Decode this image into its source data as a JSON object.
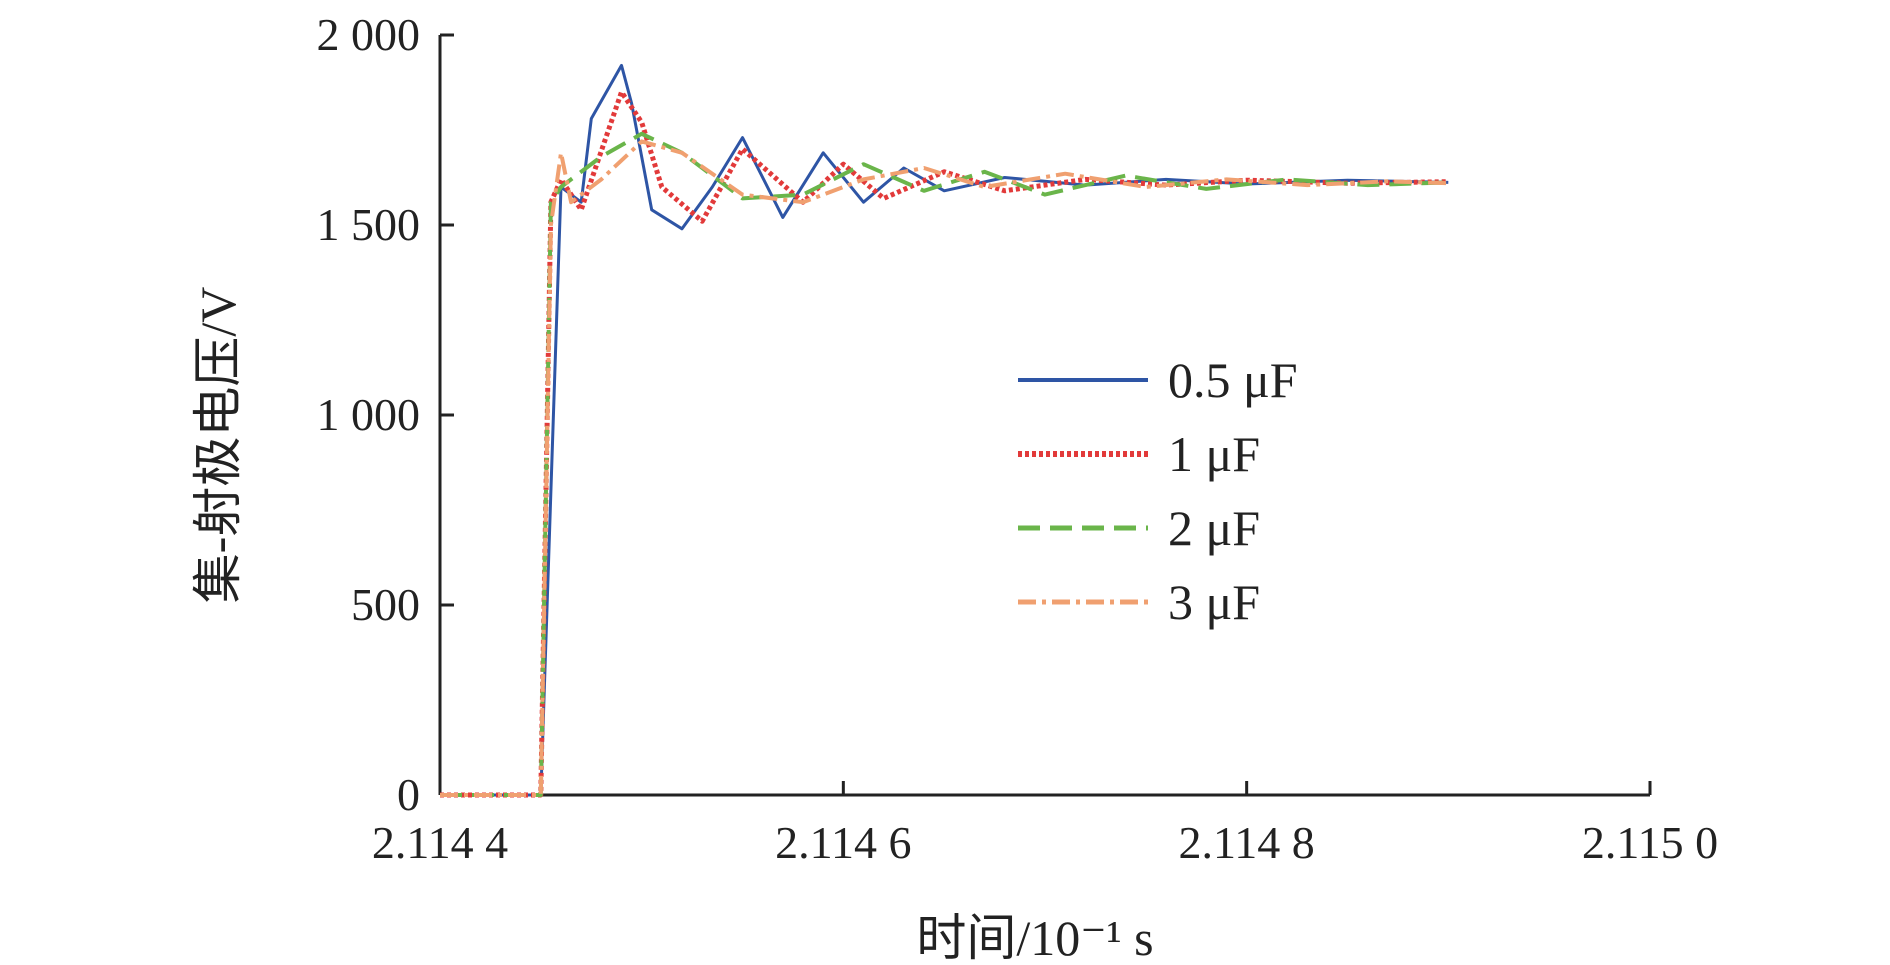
{
  "chart_data": {
    "type": "line",
    "xlabel": "时间/10⁻¹ s",
    "ylabel": "集-射极电压/V",
    "xlim": [
      2.1144,
      2.115
    ],
    "ylim": [
      0,
      2000
    ],
    "x_ticks": [
      {
        "value": 2.1144,
        "label": "2.114 4"
      },
      {
        "value": 2.1146,
        "label": "2.114 6"
      },
      {
        "value": 2.1148,
        "label": "2.114 8"
      },
      {
        "value": 2.115,
        "label": "2.115 0"
      }
    ],
    "y_ticks": [
      {
        "value": 0,
        "label": "0"
      },
      {
        "value": 500,
        "label": "500"
      },
      {
        "value": 1000,
        "label": "1 000"
      },
      {
        "value": 1500,
        "label": "1 500"
      },
      {
        "value": 2000,
        "label": "2 000"
      }
    ],
    "grid": false,
    "legend_position": "center-right",
    "series": [
      {
        "name": "0.5 μF",
        "color": "#2e55a5",
        "dash": "solid",
        "x": [
          2.1144,
          2.11445,
          2.11446,
          2.11447,
          2.114475,
          2.11449,
          2.114495,
          2.114505,
          2.11452,
          2.114535,
          2.11455,
          2.11457,
          2.11459,
          2.11461,
          2.11463,
          2.11465,
          2.11468,
          2.11472,
          2.11476,
          2.1148,
          2.11485,
          2.1149
        ],
        "y": [
          0,
          0,
          1600,
          1560,
          1780,
          1920,
          1820,
          1540,
          1490,
          1600,
          1730,
          1520,
          1690,
          1560,
          1650,
          1590,
          1625,
          1605,
          1620,
          1608,
          1618,
          1612
        ]
      },
      {
        "name": "1 μF",
        "color": "#e23a3a",
        "dash": "dotted",
        "x": [
          2.1144,
          2.11445,
          2.114455,
          2.11446,
          2.11447,
          2.11449,
          2.1145,
          2.11451,
          2.11453,
          2.11455,
          2.11458,
          2.1146,
          2.11462,
          2.11465,
          2.11468,
          2.11472,
          2.11476,
          2.1148,
          2.11485,
          2.1149
        ],
        "y": [
          0,
          0,
          1560,
          1620,
          1540,
          1850,
          1770,
          1600,
          1510,
          1700,
          1560,
          1660,
          1570,
          1640,
          1590,
          1620,
          1605,
          1618,
          1610,
          1614
        ]
      },
      {
        "name": "2 μF",
        "color": "#6ab54a",
        "dash": "dashed",
        "x": [
          2.1144,
          2.11445,
          2.114455,
          2.11446,
          2.11448,
          2.1145,
          2.11452,
          2.11455,
          2.11458,
          2.11461,
          2.11464,
          2.11467,
          2.1147,
          2.11474,
          2.11478,
          2.11482,
          2.11486,
          2.1149
        ],
        "y": [
          0,
          0,
          1560,
          1600,
          1680,
          1740,
          1690,
          1570,
          1580,
          1660,
          1590,
          1640,
          1580,
          1630,
          1595,
          1620,
          1605,
          1612
        ]
      },
      {
        "name": "3 μF",
        "color": "#f0a070",
        "dash": "dashdot",
        "x": [
          2.1144,
          2.11445,
          2.114455,
          2.11446,
          2.114465,
          2.11448,
          2.1145,
          2.11452,
          2.11455,
          2.11458,
          2.11461,
          2.11464,
          2.11467,
          2.11471,
          2.11475,
          2.11479,
          2.11483,
          2.11487,
          2.1149
        ],
        "y": [
          0,
          0,
          1500,
          1690,
          1560,
          1620,
          1720,
          1690,
          1580,
          1560,
          1620,
          1650,
          1600,
          1635,
          1600,
          1620,
          1605,
          1615,
          1610
        ]
      }
    ]
  }
}
